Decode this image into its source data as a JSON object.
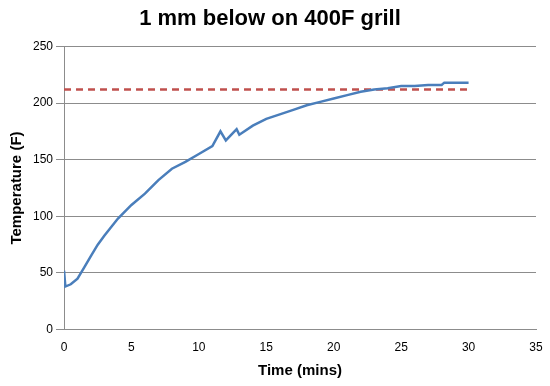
{
  "chart_data": {
    "type": "line",
    "title": "1 mm below on 400F grill",
    "x_label": "Time (mins)",
    "y_label": "Temperature (F)",
    "series": [
      {
        "color": "#4a7ebb",
        "line_style": "solid",
        "x": [
          0,
          0.1,
          0.5,
          1,
          1.5,
          2,
          2.5,
          3,
          4,
          5,
          6,
          7,
          8,
          9,
          10,
          11,
          11.6,
          12,
          12.8,
          13,
          14,
          15,
          16,
          17,
          18,
          19,
          20,
          21,
          22,
          23,
          24,
          25,
          26,
          27,
          28,
          28.2,
          29,
          30
        ],
        "values": [
          52,
          38,
          40,
          45,
          55,
          65,
          75,
          83,
          98,
          110,
          120,
          132,
          142,
          148,
          155,
          162,
          175,
          167,
          177,
          172,
          180,
          186,
          190,
          194,
          198,
          201,
          204,
          207,
          210,
          212,
          213,
          215,
          215,
          216,
          216,
          218,
          218,
          218
        ]
      },
      {
        "color": "#c0504d",
        "line_style": "dashed",
        "x": [
          0,
          30
        ],
        "values": [
          212,
          212
        ]
      }
    ],
    "xlim": [
      0,
      35
    ],
    "xticks": [
      0,
      5,
      10,
      15,
      20,
      25,
      30,
      35
    ],
    "ylim": [
      0,
      250
    ],
    "yticks": [
      0,
      50,
      100,
      150,
      200,
      250
    ],
    "grid": "y"
  }
}
